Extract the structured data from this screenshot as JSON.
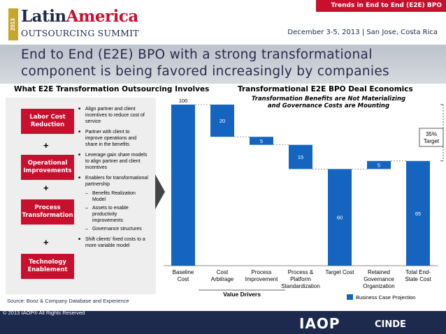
{
  "header": {
    "tag": "Trends in End to End (E2E) BPO",
    "logo_year": "2013",
    "logo_latin": "Latin",
    "logo_america": "America",
    "logo_summit": "OUTSOURCING SUMMIT",
    "event_info": "December 3-5, 2013  |  San Jose, Costa Rica"
  },
  "title": "End to End (E2E)  BPO with a strong transformational component is being favored increasingly by companies",
  "left": {
    "heading": "What E2E Transformation Outsourcing Involves",
    "plus": "+",
    "pillars": [
      {
        "label": "Labor Cost Reduction"
      },
      {
        "label": "Operational Improvements"
      },
      {
        "label": "Process Transformation"
      },
      {
        "label": "Technology Enablement"
      }
    ],
    "bullets": [
      "Align partner and client incentives to reduce cost of service",
      "Partner with client to improve operations and share in the benefits",
      "Leverage gain share models to align partner and client incentives",
      "Enablers for transformational partnership",
      "Benefits Realization Model",
      "Assets to enable productivity improvements",
      "Governance structures",
      "Shift clients' fixed costs to a more variable model"
    ],
    "source": "Source:   Booz & Company Database and Experience"
  },
  "right": {
    "heading": "Transformational E2E BPO Deal Economics"
  },
  "chart_data": {
    "type": "bar",
    "subtitle": "Transformation Benefits are Not Materializing and Governance Costs are Mounting",
    "categories": [
      "Baseline Cost",
      "Cost Arbitrage",
      "Process Improvement",
      "Process & Platform Standardization",
      "Target Cost",
      "Retained Governance Organization",
      "Total End-State Cost"
    ],
    "values": [
      100,
      20,
      5,
      15,
      60,
      5,
      65
    ],
    "bar_kind": [
      "total",
      "decrease",
      "decrease",
      "decrease",
      "total",
      "increase",
      "total"
    ],
    "value_labels": [
      "100",
      "20",
      "5",
      "15",
      "60",
      "5",
      "65"
    ],
    "ylim": [
      0,
      100
    ],
    "legend": "Business Case Projection",
    "group_label": "Value Drivers",
    "annotation": "35% Target",
    "colors": {
      "bar": "#1565c0",
      "legend": "#1565c0"
    }
  },
  "footer": {
    "copyright": "© 2013 IAOP® All Rights Reserved",
    "iaop": "IAOP",
    "cinde": "CINDE"
  }
}
